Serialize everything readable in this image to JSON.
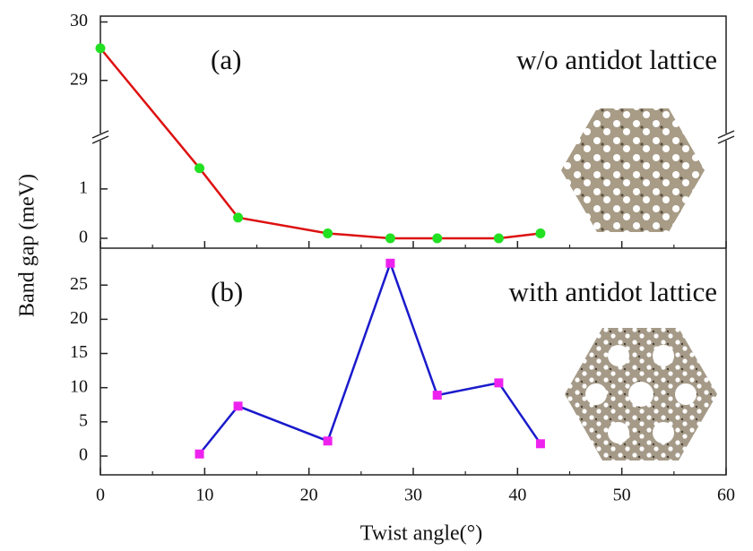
{
  "chart_data": {
    "type": "line",
    "xlabel": "Twist angle(°)",
    "ylabel": "Band gap (meV)",
    "xlim": [
      0,
      60
    ],
    "xticks": [
      0,
      10,
      20,
      30,
      40,
      50,
      60
    ],
    "panels": [
      {
        "panel_label": "(a)",
        "annotation": "w/o antidot lattice",
        "x": [
          0,
          9.5,
          13.2,
          21.8,
          27.8,
          32.3,
          38.2,
          42.2
        ],
        "values": [
          29.55,
          1.42,
          0.42,
          0.1,
          0.0,
          0.0,
          0.0,
          0.1
        ],
        "color": "#dd1111",
        "marker": "circle",
        "marker_color": "#22e022",
        "ylim": [
          -0.2,
          30.1
        ],
        "axis_break": [
          2.05,
          28.03
        ],
        "yticks": [
          0,
          1,
          29,
          30
        ]
      },
      {
        "panel_label": "(b)",
        "annotation": "with antidot lattice",
        "x": [
          9.5,
          13.2,
          21.8,
          27.8,
          32.3,
          38.2,
          42.2
        ],
        "values": [
          0.3,
          7.3,
          2.2,
          28.2,
          8.9,
          10.7,
          1.8
        ],
        "color": "#1a1acc",
        "marker": "square",
        "marker_color": "#ee22ee",
        "ylim": [
          -2.75,
          30.4
        ],
        "yticks": [
          0,
          5,
          10,
          15,
          20,
          25
        ]
      }
    ]
  }
}
